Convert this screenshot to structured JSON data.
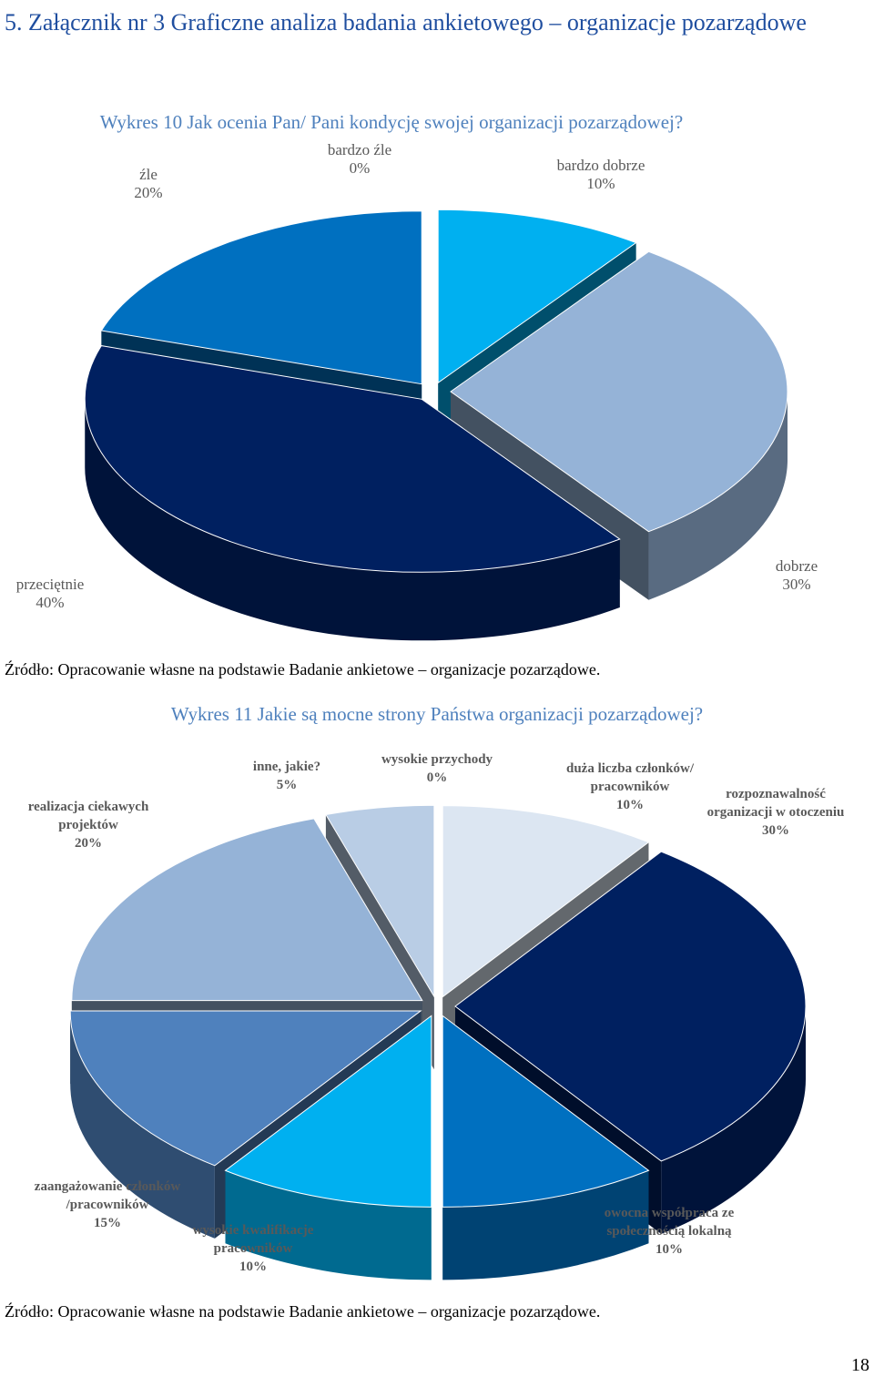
{
  "heading": "5. Załącznik nr 3 Graficzne analiza badania ankietowego – organizacje pozarządowe",
  "chart_data": [
    {
      "type": "pie",
      "title": "Wykres 10 Jak ocenia Pan/ Pani kondycję swojej organizacji pozarządowej?",
      "categories": [
        "bardzo dobrze",
        "dobrze",
        "przeciętnie",
        "źle",
        "bardzo źle"
      ],
      "values": [
        10,
        30,
        40,
        20,
        0
      ],
      "value_labels": [
        "10%",
        "30%",
        "40%",
        "20%",
        "0%"
      ],
      "colors": [
        "#00b0f0",
        "#95b3d7",
        "#002060",
        "#0070c0",
        "#c6d9f1"
      ],
      "source": "Źródło: Opracowanie własne na podstawie Badanie ankietowe – organizacje pozarządowe."
    },
    {
      "type": "pie",
      "title": "Wykres 11 Jakie są mocne strony Państwa organizacji pozarządowej?",
      "categories": [
        "wysokie przychody",
        "duża liczba członków/ pracowników",
        "rozpoznawalność organizacji w otoczeniu",
        "owocna współpraca ze społecznością lokalną",
        "wysokie kwalifikacje pracowników",
        "zaangażowanie członków /pracowników",
        "realizacja ciekawych projektów",
        "inne, jakie?"
      ],
      "values": [
        0,
        10,
        30,
        10,
        10,
        15,
        20,
        5
      ],
      "value_labels": [
        "0%",
        "10%",
        "30%",
        "10%",
        "10%",
        "15%",
        "20%",
        "5%"
      ],
      "colors": [
        "#c6d9f1",
        "#dce6f2",
        "#002060",
        "#0070c0",
        "#00b0f0",
        "#4f81bd",
        "#95b3d7",
        "#b9cde5"
      ],
      "source": "Źródło: Opracowanie własne na podstawie Badanie ankietowe – organizacje pozarządowe."
    }
  ],
  "page_number": "18"
}
